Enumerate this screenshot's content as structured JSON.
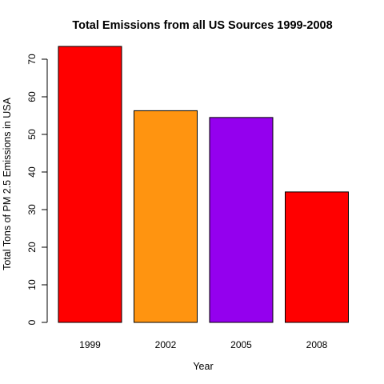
{
  "chart_data": {
    "type": "bar",
    "title": "Total Emissions from all US Sources 1999-2008",
    "xlabel": "Year",
    "ylabel": "Total Tons of PM 2.5 Emissions in USA",
    "categories": [
      "1999",
      "2002",
      "2005",
      "2008"
    ],
    "values": [
      73.4,
      56.3,
      54.5,
      34.7
    ],
    "colors": [
      "#ff0000",
      "#ff9410",
      "#9400ee",
      "#ff0000"
    ],
    "ylim": [
      0,
      70
    ],
    "yticks": [
      0,
      10,
      20,
      30,
      40,
      50,
      60,
      70
    ],
    "grid": false,
    "legend": "none"
  }
}
